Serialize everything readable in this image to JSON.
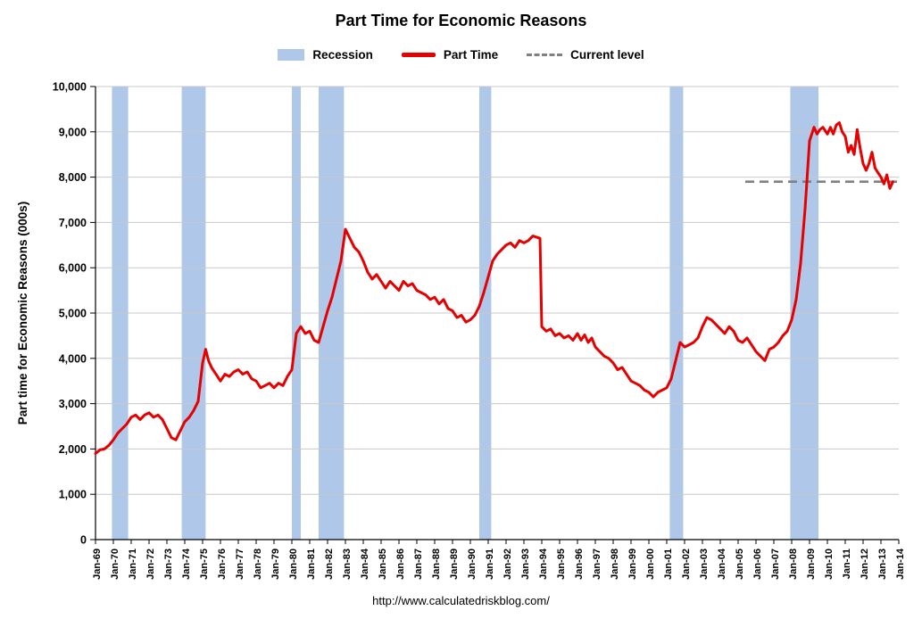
{
  "title": "Part Time for Economic Reasons",
  "footer_url": "http://www.calculatedriskblog.com/",
  "legend": [
    {
      "label": "Recession",
      "type": "band"
    },
    {
      "label": "Part Time",
      "type": "line"
    },
    {
      "label": "Current level",
      "type": "dashed"
    }
  ],
  "chart_data": {
    "type": "line",
    "title": "Part Time for Economic Reasons",
    "xlabel": "",
    "ylabel": "Part time for Economic Reasons (000s)",
    "ylim": [
      0,
      10000
    ],
    "ytick_interval": 1000,
    "ytick_labels": [
      "0",
      "1,000",
      "2,000",
      "3,000",
      "4,000",
      "5,000",
      "6,000",
      "7,000",
      "8,000",
      "9,000",
      "10,000"
    ],
    "x_range": [
      1969,
      2014
    ],
    "xtick_labels": [
      "Jan-69",
      "Jan-70",
      "Jan-71",
      "Jan-72",
      "Jan-73",
      "Jan-74",
      "Jan-75",
      "Jan-76",
      "Jan-77",
      "Jan-78",
      "Jan-79",
      "Jan-80",
      "Jan-81",
      "Jan-82",
      "Jan-83",
      "Jan-84",
      "Jan-85",
      "Jan-86",
      "Jan-87",
      "Jan-88",
      "Jan-89",
      "Jan-90",
      "Jan-91",
      "Jan-92",
      "Jan-93",
      "Jan-94",
      "Jan-95",
      "Jan-96",
      "Jan-97",
      "Jan-98",
      "Jan-99",
      "Jan-00",
      "Jan-01",
      "Jan-02",
      "Jan-03",
      "Jan-04",
      "Jan-05",
      "Jan-06",
      "Jan-07",
      "Jan-08",
      "Jan-09",
      "Jan-10",
      "Jan-11",
      "Jan-12",
      "Jan-13",
      "Jan-14"
    ],
    "grid": "horizontal-only",
    "legend_position": "top-center",
    "colors": {
      "recession": "#afc7e8",
      "part_time": "#e60000",
      "current_level": "#808080",
      "gridline": "#c8c8c8",
      "axis": "#000000"
    },
    "recessions": [
      [
        1969.92,
        1970.83
      ],
      [
        1973.83,
        1975.17
      ],
      [
        1980.0,
        1980.5
      ],
      [
        1981.5,
        1982.92
      ],
      [
        1990.5,
        1991.17
      ],
      [
        2001.17,
        2001.92
      ],
      [
        2007.92,
        2009.5
      ]
    ],
    "current_level": {
      "label": "Current level",
      "value": 7900,
      "x_start": 2005.4,
      "x_end": 2014.15
    },
    "series": [
      {
        "name": "Part Time",
        "points": [
          [
            1969,
            1900
          ],
          [
            1969.25,
            1980
          ],
          [
            1969.5,
            2000
          ],
          [
            1969.75,
            2080
          ],
          [
            1970,
            2200
          ],
          [
            1970.25,
            2350
          ],
          [
            1970.5,
            2450
          ],
          [
            1970.75,
            2550
          ],
          [
            1971,
            2700
          ],
          [
            1971.25,
            2750
          ],
          [
            1971.5,
            2650
          ],
          [
            1971.75,
            2750
          ],
          [
            1972,
            2800
          ],
          [
            1972.25,
            2700
          ],
          [
            1972.5,
            2750
          ],
          [
            1972.75,
            2650
          ],
          [
            1973,
            2450
          ],
          [
            1973.25,
            2250
          ],
          [
            1973.5,
            2200
          ],
          [
            1973.75,
            2400
          ],
          [
            1974,
            2600
          ],
          [
            1974.25,
            2700
          ],
          [
            1974.5,
            2850
          ],
          [
            1974.75,
            3050
          ],
          [
            1975,
            3900
          ],
          [
            1975.17,
            4200
          ],
          [
            1975.33,
            3950
          ],
          [
            1975.5,
            3800
          ],
          [
            1975.75,
            3650
          ],
          [
            1976,
            3500
          ],
          [
            1976.25,
            3650
          ],
          [
            1976.5,
            3600
          ],
          [
            1976.75,
            3700
          ],
          [
            1977,
            3750
          ],
          [
            1977.25,
            3650
          ],
          [
            1977.5,
            3700
          ],
          [
            1977.75,
            3550
          ],
          [
            1978,
            3500
          ],
          [
            1978.25,
            3350
          ],
          [
            1978.5,
            3400
          ],
          [
            1978.75,
            3450
          ],
          [
            1979,
            3350
          ],
          [
            1979.25,
            3450
          ],
          [
            1979.5,
            3400
          ],
          [
            1979.75,
            3600
          ],
          [
            1980,
            3750
          ],
          [
            1980.25,
            4550
          ],
          [
            1980.5,
            4700
          ],
          [
            1980.75,
            4550
          ],
          [
            1981,
            4600
          ],
          [
            1981.25,
            4400
          ],
          [
            1981.5,
            4350
          ],
          [
            1981.75,
            4700
          ],
          [
            1982,
            5050
          ],
          [
            1982.25,
            5350
          ],
          [
            1982.5,
            5750
          ],
          [
            1982.75,
            6150
          ],
          [
            1983,
            6850
          ],
          [
            1983.25,
            6650
          ],
          [
            1983.5,
            6450
          ],
          [
            1983.75,
            6350
          ],
          [
            1984,
            6150
          ],
          [
            1984.25,
            5900
          ],
          [
            1984.5,
            5750
          ],
          [
            1984.75,
            5850
          ],
          [
            1985,
            5700
          ],
          [
            1985.25,
            5550
          ],
          [
            1985.5,
            5700
          ],
          [
            1985.75,
            5600
          ],
          [
            1986,
            5500
          ],
          [
            1986.25,
            5700
          ],
          [
            1986.5,
            5600
          ],
          [
            1986.75,
            5650
          ],
          [
            1987,
            5500
          ],
          [
            1987.25,
            5450
          ],
          [
            1987.5,
            5400
          ],
          [
            1987.75,
            5300
          ],
          [
            1988,
            5350
          ],
          [
            1988.25,
            5200
          ],
          [
            1988.5,
            5300
          ],
          [
            1988.75,
            5100
          ],
          [
            1989,
            5050
          ],
          [
            1989.25,
            4900
          ],
          [
            1989.5,
            4950
          ],
          [
            1989.75,
            4800
          ],
          [
            1990,
            4850
          ],
          [
            1990.25,
            4950
          ],
          [
            1990.5,
            5150
          ],
          [
            1990.75,
            5450
          ],
          [
            1991,
            5800
          ],
          [
            1991.25,
            6150
          ],
          [
            1991.5,
            6300
          ],
          [
            1991.75,
            6400
          ],
          [
            1992,
            6500
          ],
          [
            1992.25,
            6550
          ],
          [
            1992.5,
            6450
          ],
          [
            1992.75,
            6600
          ],
          [
            1993,
            6550
          ],
          [
            1993.25,
            6600
          ],
          [
            1993.5,
            6700
          ],
          [
            1993.9,
            6650
          ],
          [
            1994,
            4700
          ],
          [
            1994.25,
            4600
          ],
          [
            1994.5,
            4650
          ],
          [
            1994.75,
            4500
          ],
          [
            1995,
            4550
          ],
          [
            1995.25,
            4450
          ],
          [
            1995.5,
            4500
          ],
          [
            1995.75,
            4400
          ],
          [
            1996,
            4550
          ],
          [
            1996.2,
            4400
          ],
          [
            1996.4,
            4520
          ],
          [
            1996.6,
            4350
          ],
          [
            1996.8,
            4450
          ],
          [
            1997,
            4250
          ],
          [
            1997.25,
            4150
          ],
          [
            1997.5,
            4050
          ],
          [
            1997.75,
            4000
          ],
          [
            1998,
            3900
          ],
          [
            1998.25,
            3750
          ],
          [
            1998.5,
            3800
          ],
          [
            1998.75,
            3650
          ],
          [
            1999,
            3500
          ],
          [
            1999.25,
            3450
          ],
          [
            1999.5,
            3400
          ],
          [
            1999.75,
            3300
          ],
          [
            2000,
            3250
          ],
          [
            2000.25,
            3150
          ],
          [
            2000.5,
            3250
          ],
          [
            2000.75,
            3300
          ],
          [
            2001,
            3350
          ],
          [
            2001.25,
            3550
          ],
          [
            2001.5,
            3950
          ],
          [
            2001.75,
            4350
          ],
          [
            2002,
            4250
          ],
          [
            2002.25,
            4300
          ],
          [
            2002.5,
            4350
          ],
          [
            2002.75,
            4450
          ],
          [
            2003,
            4700
          ],
          [
            2003.25,
            4900
          ],
          [
            2003.5,
            4850
          ],
          [
            2003.75,
            4750
          ],
          [
            2004,
            4650
          ],
          [
            2004.25,
            4550
          ],
          [
            2004.5,
            4700
          ],
          [
            2004.75,
            4600
          ],
          [
            2005,
            4400
          ],
          [
            2005.25,
            4350
          ],
          [
            2005.5,
            4450
          ],
          [
            2005.75,
            4300
          ],
          [
            2006,
            4150
          ],
          [
            2006.25,
            4050
          ],
          [
            2006.5,
            3950
          ],
          [
            2006.75,
            4200
          ],
          [
            2007,
            4250
          ],
          [
            2007.25,
            4350
          ],
          [
            2007.5,
            4500
          ],
          [
            2007.75,
            4600
          ],
          [
            2008,
            4850
          ],
          [
            2008.25,
            5300
          ],
          [
            2008.5,
            6100
          ],
          [
            2008.75,
            7300
          ],
          [
            2009,
            8800
          ],
          [
            2009.25,
            9100
          ],
          [
            2009.42,
            8950
          ],
          [
            2009.58,
            9050
          ],
          [
            2009.75,
            9100
          ],
          [
            2010,
            8950
          ],
          [
            2010.17,
            9100
          ],
          [
            2010.33,
            8950
          ],
          [
            2010.5,
            9150
          ],
          [
            2010.67,
            9200
          ],
          [
            2010.83,
            9000
          ],
          [
            2011,
            8900
          ],
          [
            2011.17,
            8550
          ],
          [
            2011.33,
            8700
          ],
          [
            2011.5,
            8500
          ],
          [
            2011.67,
            9050
          ],
          [
            2011.83,
            8650
          ],
          [
            2012,
            8300
          ],
          [
            2012.17,
            8150
          ],
          [
            2012.33,
            8300
          ],
          [
            2012.5,
            8550
          ],
          [
            2012.67,
            8200
          ],
          [
            2012.83,
            8100
          ],
          [
            2013,
            8000
          ],
          [
            2013.17,
            7850
          ],
          [
            2013.33,
            8050
          ],
          [
            2013.5,
            7750
          ],
          [
            2013.67,
            7900
          ]
        ]
      }
    ]
  }
}
